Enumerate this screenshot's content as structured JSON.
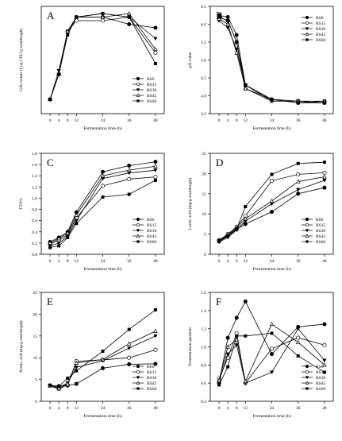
{
  "figure": {
    "panel_letters": [
      "A",
      "B",
      "C",
      "D",
      "E",
      "F"
    ]
  },
  "chart_data": [
    {
      "type": "line",
      "panel": "A",
      "xlabel": "Fermentation time (h)",
      "ylabel": "Cell counts (Log CFU/g sourdough)",
      "x": [
        0,
        4,
        8,
        12,
        24,
        36,
        48
      ],
      "xticks": [
        0,
        4,
        8,
        12,
        24,
        36,
        48
      ],
      "ylim": [
        6.5,
        9.5
      ],
      "yticks": [],
      "legend_position": "bottom-right",
      "series": [
        {
          "name": "BS0",
          "values": [
            6.9,
            7.6,
            8.8,
            9.2,
            9.2,
            9.0,
            8.9
          ]
        },
        {
          "name": "BS15",
          "values": [
            6.9,
            7.6,
            8.8,
            9.1,
            9.1,
            9.2,
            8.2
          ]
        },
        {
          "name": "BS30",
          "values": [
            6.9,
            7.7,
            8.8,
            9.2,
            9.3,
            9.2,
            8.6
          ]
        },
        {
          "name": "BS45",
          "values": [
            6.9,
            7.6,
            8.8,
            9.2,
            9.2,
            9.3,
            8.3
          ]
        },
        {
          "name": "BS60",
          "values": [
            6.9,
            7.6,
            8.7,
            9.2,
            9.3,
            9.2,
            7.9
          ]
        }
      ]
    },
    {
      "type": "line",
      "panel": "B",
      "xlabel": "Fermentation time (h)",
      "ylabel": "pH value",
      "x": [
        0,
        4,
        8,
        12,
        24,
        36,
        48
      ],
      "xticks": [
        0,
        4,
        8,
        12,
        24,
        36,
        48
      ],
      "ylim": [
        3.5,
        6.5
      ],
      "yticks": [
        3.5,
        4.0,
        4.5,
        5.0,
        5.5,
        6.0,
        6.5
      ],
      "legend_position": "top-right",
      "series": [
        {
          "name": "BS0",
          "values": [
            6.25,
            6.2,
            5.7,
            4.3,
            3.9,
            3.8,
            3.85
          ]
        },
        {
          "name": "BS15",
          "values": [
            6.2,
            6.1,
            5.5,
            4.2,
            3.85,
            3.85,
            3.8
          ]
        },
        {
          "name": "BS30",
          "values": [
            6.1,
            5.9,
            5.3,
            4.3,
            3.85,
            3.85,
            3.8
          ]
        },
        {
          "name": "BS45",
          "values": [
            6.15,
            6.0,
            5.2,
            4.2,
            3.9,
            3.85,
            3.85
          ]
        },
        {
          "name": "BS60",
          "values": [
            6.2,
            6.1,
            5.5,
            4.3,
            3.9,
            3.8,
            3.8
          ]
        }
      ]
    },
    {
      "type": "line",
      "panel": "C",
      "xlabel": "Fermentation time (h)",
      "ylabel": "TTA%",
      "x": [
        0,
        4,
        8,
        12,
        24,
        36,
        48
      ],
      "xticks": [
        0,
        4,
        8,
        12,
        24,
        36,
        48
      ],
      "ylim": [
        0.0,
        1.8
      ],
      "yticks": [
        0.0,
        0.2,
        0.4,
        0.6,
        0.8,
        1.0,
        1.2,
        1.4,
        1.6,
        1.8
      ],
      "legend_position": "bottom-right",
      "series": [
        {
          "name": "BS0",
          "values": [
            0.22,
            0.3,
            0.4,
            0.75,
            1.47,
            1.58,
            1.65
          ]
        },
        {
          "name": "BS15",
          "values": [
            0.18,
            0.25,
            0.35,
            0.65,
            1.22,
            1.34,
            1.38
          ]
        },
        {
          "name": "BS30",
          "values": [
            0.15,
            0.2,
            0.32,
            0.6,
            1.35,
            1.45,
            1.5
          ]
        },
        {
          "name": "BS45",
          "values": [
            0.2,
            0.28,
            0.38,
            0.7,
            1.4,
            1.5,
            1.57
          ]
        },
        {
          "name": "BS60",
          "values": [
            0.12,
            0.15,
            0.3,
            0.55,
            1.02,
            1.07,
            1.32
          ]
        }
      ]
    },
    {
      "type": "line",
      "panel": "D",
      "xlabel": "Fermentation time (h)",
      "ylabel": "Lactic acid (mg/g sourdough)",
      "x": [
        0,
        4,
        8,
        12,
        24,
        36,
        48
      ],
      "xticks": [
        0,
        4,
        8,
        12,
        24,
        36,
        48
      ],
      "ylim": [
        0,
        25
      ],
      "yticks": [
        0,
        5,
        10,
        15,
        20,
        25
      ],
      "legend_position": "bottom-right",
      "series": [
        {
          "name": "BS0",
          "values": [
            3.2,
            4.5,
            6.2,
            7.5,
            10.5,
            15.0,
            16.5
          ]
        },
        {
          "name": "BS15",
          "values": [
            3.5,
            5.0,
            6.8,
            9.5,
            18.2,
            19.8,
            20.2
          ]
        },
        {
          "name": "BS30",
          "values": [
            3.0,
            4.2,
            6.0,
            8.2,
            12.5,
            16.0,
            18.3
          ]
        },
        {
          "name": "BS45",
          "values": [
            3.3,
            4.8,
            6.5,
            8.8,
            13.2,
            18.0,
            19.2
          ]
        },
        {
          "name": "BS60",
          "values": [
            3.4,
            4.6,
            6.3,
            11.8,
            19.8,
            22.5,
            22.8
          ]
        }
      ]
    },
    {
      "type": "line",
      "panel": "E",
      "xlabel": "Fermentation time (h)",
      "ylabel": "Acetic acid (mg/g sourdough)",
      "x": [
        0,
        4,
        8,
        12,
        24,
        36,
        48
      ],
      "xticks": [
        0,
        4,
        8,
        12,
        24,
        36,
        48
      ],
      "ylim": [
        0,
        25
      ],
      "yticks": [
        0,
        5,
        10,
        15,
        20,
        25
      ],
      "legend_position": "bottom-right",
      "series": [
        {
          "name": "BS0",
          "values": [
            3.6,
            3.5,
            3.6,
            4.0,
            7.6,
            8.5,
            8.6
          ]
        },
        {
          "name": "BS15",
          "values": [
            3.6,
            2.8,
            3.8,
            9.2,
            9.5,
            10.0,
            11.8
          ]
        },
        {
          "name": "BS30",
          "values": [
            3.6,
            3.2,
            4.2,
            7.8,
            9.3,
            12.2,
            15.0
          ]
        },
        {
          "name": "BS45",
          "values": [
            3.5,
            3.0,
            4.0,
            8.8,
            9.6,
            13.2,
            16.1
          ]
        },
        {
          "name": "BS60",
          "values": [
            3.7,
            3.4,
            5.3,
            7.0,
            11.5,
            16.5,
            21.0
          ]
        }
      ]
    },
    {
      "type": "line",
      "panel": "F",
      "xlabel": "Fermentation time (h)",
      "ylabel": "Fermentation quotient",
      "x": [
        0,
        4,
        8,
        12,
        24,
        36,
        48
      ],
      "xticks": [
        0,
        4,
        8,
        12,
        24,
        36,
        48
      ],
      "ylim": [
        0.4,
        1.6
      ],
      "yticks": [
        0.4,
        0.6,
        0.8,
        1.0,
        1.2,
        1.4,
        1.6
      ],
      "legend_position": "bottom-right",
      "series": [
        {
          "name": "BS0",
          "values": [
            0.6,
            1.1,
            1.32,
            1.5,
            0.92,
            1.22,
            1.25
          ]
        },
        {
          "name": "BS15",
          "values": [
            0.65,
            0.88,
            1.15,
            0.6,
            0.98,
            1.1,
            1.02
          ]
        },
        {
          "name": "BS30",
          "values": [
            0.62,
            0.92,
            1.02,
            0.6,
            0.72,
            1.2,
            0.85
          ]
        },
        {
          "name": "BS45",
          "values": [
            0.63,
            1.0,
            1.08,
            0.62,
            1.25,
            1.05,
            0.8
          ]
        },
        {
          "name": "BS60",
          "values": [
            0.58,
            0.78,
            1.12,
            1.12,
            1.15,
            0.9,
            0.72
          ]
        }
      ]
    }
  ]
}
